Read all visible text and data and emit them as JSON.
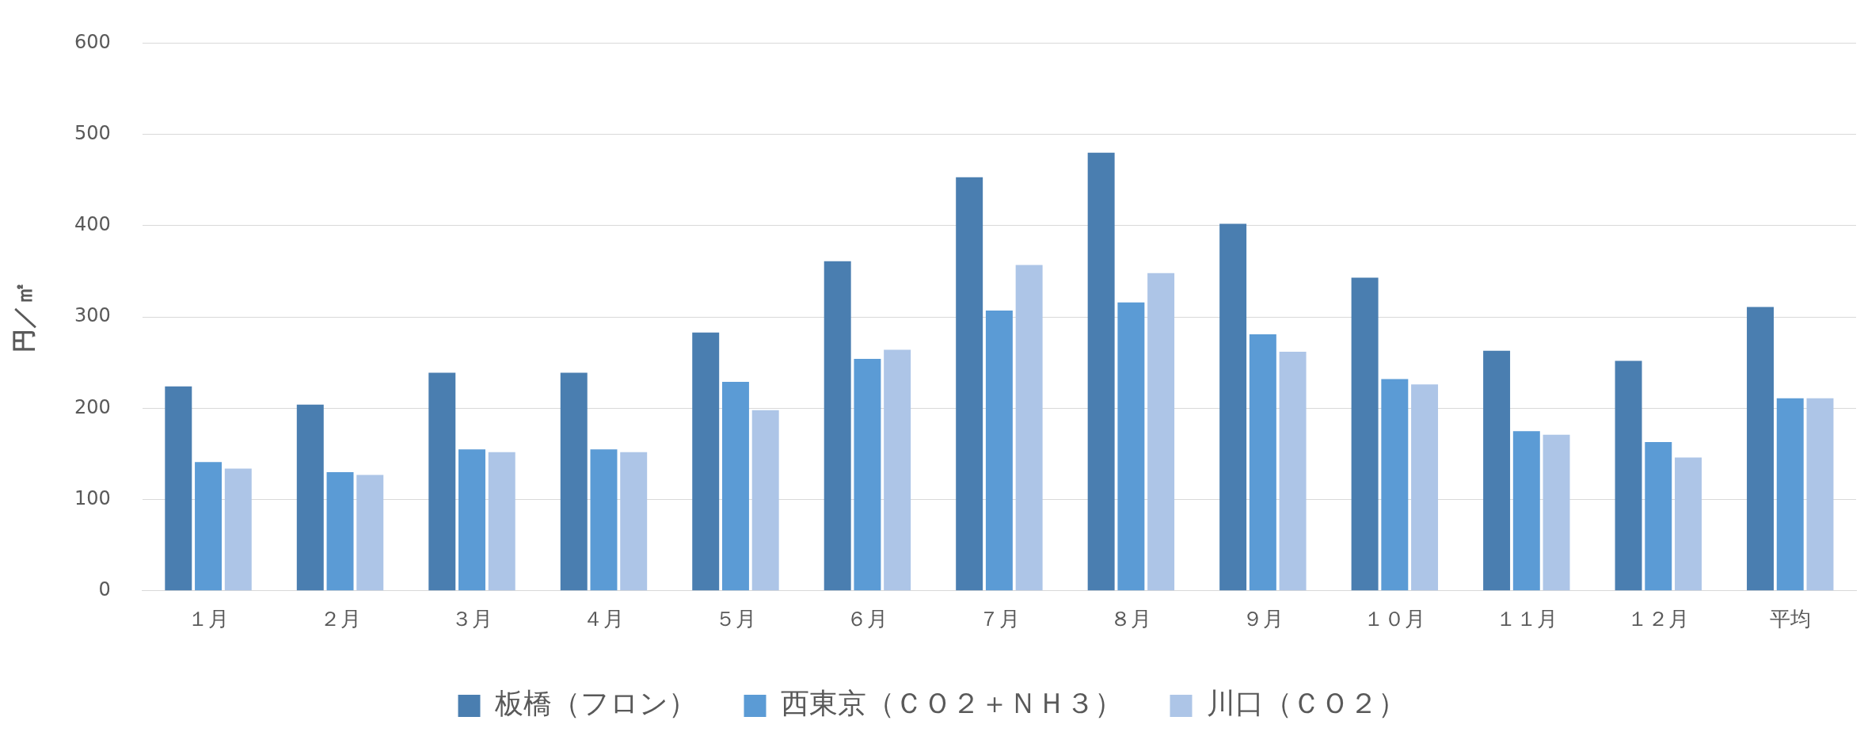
{
  "chart_data": {
    "type": "bar",
    "ylabel": "円／㎡",
    "categories": [
      "１月",
      "２月",
      "３月",
      "４月",
      "５月",
      "６月",
      "７月",
      "８月",
      "９月",
      "１０月",
      "１１月",
      "１２月",
      "平均"
    ],
    "series": [
      {
        "name": "板橋（フロン）",
        "color": "#4a7eb0",
        "values": [
          224,
          204,
          239,
          239,
          283,
          361,
          453,
          480,
          402,
          343,
          263,
          252,
          311
        ]
      },
      {
        "name": "西東京（ＣＯ２＋ＮＨ３）",
        "color": "#5b9bd5",
        "values": [
          141,
          130,
          155,
          155,
          229,
          254,
          307,
          316,
          281,
          232,
          175,
          163,
          211
        ]
      },
      {
        "name": "川口（ＣＯ２）",
        "color": "#adc5e7",
        "values": [
          134,
          127,
          152,
          152,
          198,
          264,
          357,
          348,
          262,
          226,
          171,
          146,
          211
        ]
      }
    ],
    "ylim": [
      0,
      600
    ],
    "yticks": [
      0,
      100,
      200,
      300,
      400,
      500,
      600
    ],
    "grid": "y",
    "legend": "bottom"
  }
}
